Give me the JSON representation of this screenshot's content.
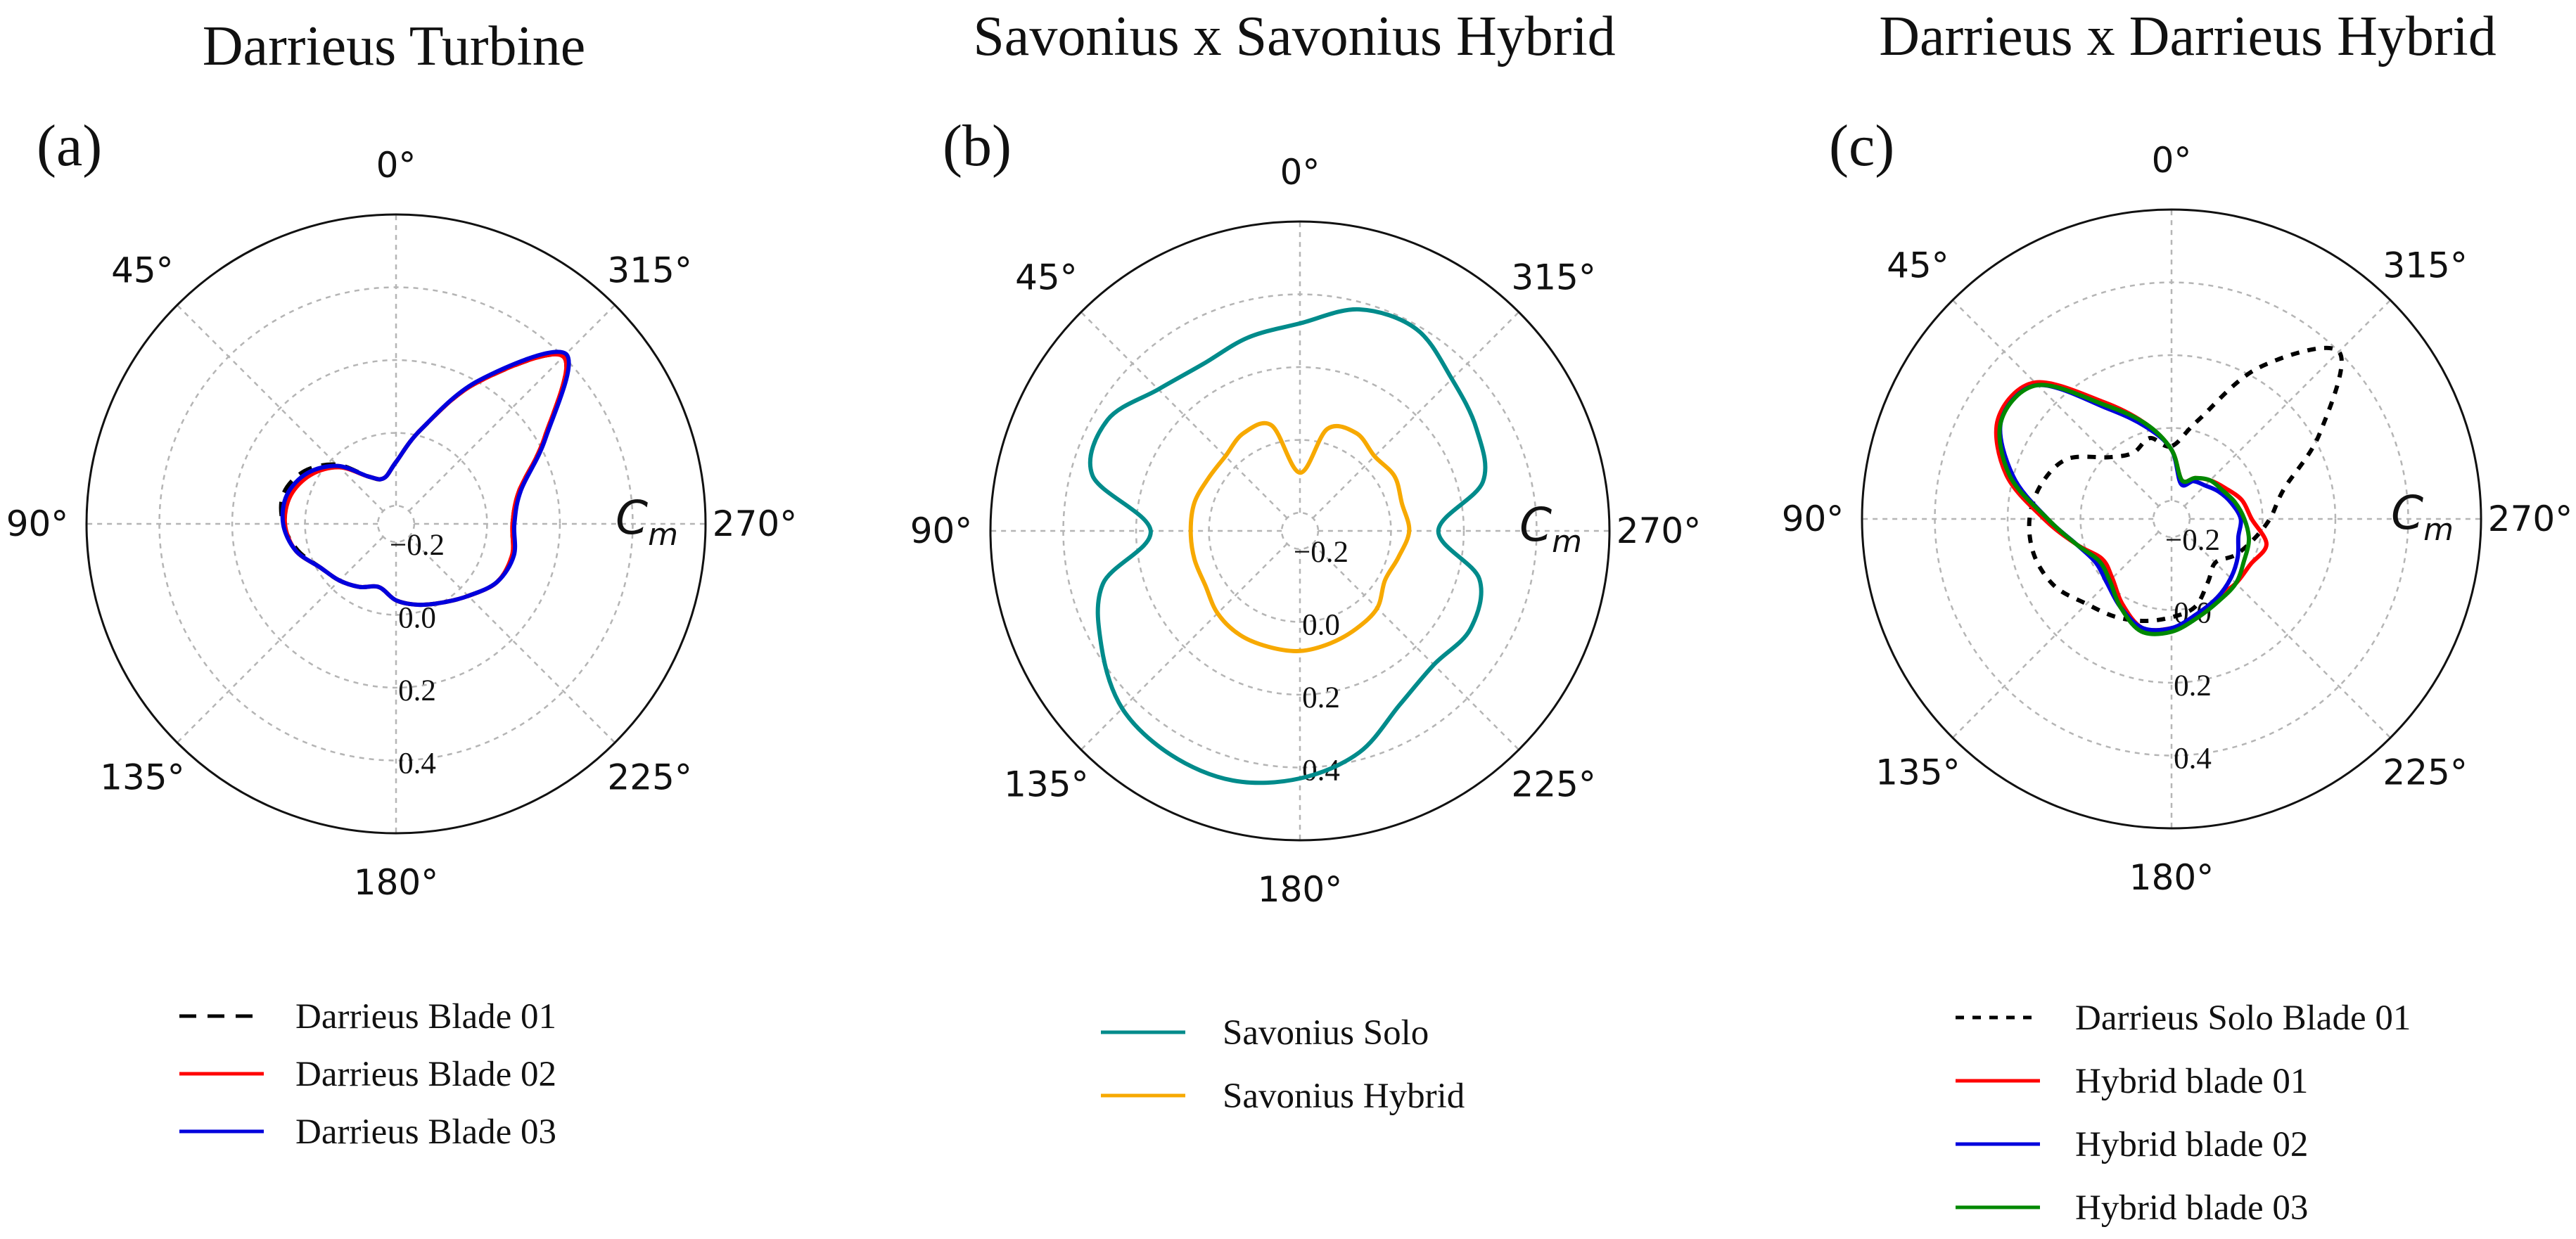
{
  "chart_data": [
    {
      "type": "polar-line",
      "panel_label": "(a)",
      "title": "Darrieus Turbine",
      "angle_labels": [
        "0°",
        "45°",
        "90°",
        "135°",
        "180°",
        "225°",
        "270°",
        "315°"
      ],
      "radial_tick_labels": [
        "−0.2",
        "0.0",
        "0.2",
        "0.4"
      ],
      "radial_ticks": [
        -0.2,
        0.0,
        0.2,
        0.4
      ],
      "rlim": [
        -0.25,
        0.6
      ],
      "radial_axis_label": "Cm",
      "theta_direction": "counterclockwise from top",
      "grid": true,
      "legend_position": "below",
      "theta_deg": [
        0,
        15,
        30,
        45,
        60,
        75,
        90,
        105,
        120,
        135,
        150,
        165,
        180,
        195,
        210,
        225,
        240,
        255,
        270,
        285,
        300,
        315,
        330,
        345
      ],
      "series": [
        {
          "name": "Darrieus Blade 01",
          "color": "#000000",
          "dash": "dashed",
          "values": [
            -0.08,
            -0.12,
            -0.1,
            -0.02,
            0.04,
            0.07,
            0.06,
            0.03,
            -0.01,
            -0.03,
            -0.05,
            -0.07,
            -0.04,
            -0.02,
            0.0,
            0.03,
            0.07,
            0.08,
            0.07,
            0.1,
            0.22,
            0.4,
            0.2,
            0.02
          ]
        },
        {
          "name": "Darrieus Blade 02",
          "color": "#ff0000",
          "dash": "solid",
          "values": [
            -0.08,
            -0.12,
            -0.1,
            -0.03,
            0.02,
            0.05,
            0.055,
            0.035,
            -0.01,
            -0.03,
            -0.05,
            -0.07,
            -0.04,
            -0.02,
            0.0,
            0.03,
            0.07,
            0.08,
            0.07,
            0.1,
            0.22,
            0.4,
            0.2,
            0.02
          ]
        },
        {
          "name": "Darrieus Blade 03",
          "color": "#0000dd",
          "dash": "solid",
          "values": [
            -0.08,
            -0.12,
            -0.1,
            -0.025,
            0.03,
            0.06,
            0.06,
            0.035,
            -0.01,
            -0.03,
            -0.05,
            -0.07,
            -0.04,
            -0.02,
            0.0,
            0.03,
            0.07,
            0.085,
            0.075,
            0.105,
            0.225,
            0.41,
            0.205,
            0.02
          ]
        }
      ]
    },
    {
      "type": "polar-line",
      "panel_label": "(b)",
      "title": "Savonius x Savonius Hybrid",
      "angle_labels": [
        "0°",
        "45°",
        "90°",
        "135°",
        "180°",
        "225°",
        "270°",
        "315°"
      ],
      "radial_tick_labels": [
        "−0.2",
        "0.0",
        "0.2",
        "0.4"
      ],
      "radial_ticks": [
        -0.2,
        0.0,
        0.2,
        0.4
      ],
      "rlim": [
        -0.25,
        0.6
      ],
      "radial_axis_label": "Cm",
      "theta_direction": "counterclockwise from top",
      "grid": true,
      "legend_position": "below",
      "theta_deg": [
        0,
        15,
        30,
        45,
        60,
        75,
        90,
        105,
        120,
        135,
        150,
        165,
        180,
        195,
        210,
        225,
        240,
        255,
        270,
        285,
        300,
        315,
        330,
        345
      ],
      "series": [
        {
          "name": "Savonius Solo",
          "color": "#008b8b",
          "dash": "solid",
          "values": [
            0.32,
            0.3,
            0.28,
            0.3,
            0.36,
            0.34,
            0.16,
            0.31,
            0.38,
            0.44,
            0.46,
            0.46,
            0.43,
            0.38,
            0.3,
            0.27,
            0.29,
            0.26,
            0.13,
            0.27,
            0.31,
            0.34,
            0.39,
            0.38
          ]
        },
        {
          "name": "Savonius Hybrid",
          "color": "#f7a900",
          "dash": "solid",
          "values": [
            -0.09,
            0.05,
            0.06,
            0.04,
            0.04,
            0.05,
            0.05,
            0.05,
            0.05,
            0.07,
            0.08,
            0.08,
            0.08,
            0.07,
            0.06,
            0.05,
            0.02,
            0.03,
            0.05,
            0.04,
            0.05,
            0.04,
            0.06,
            0.04
          ]
        }
      ]
    },
    {
      "type": "polar-line",
      "panel_label": "(c)",
      "title": "Darrieus x Darrieus Hybrid",
      "angle_labels": [
        "0°",
        "45°",
        "90°",
        "135°",
        "180°",
        "225°",
        "270°",
        "315°"
      ],
      "radial_tick_labels": [
        "−0.2",
        "0.0",
        "0.2",
        "0.4"
      ],
      "radial_ticks": [
        -0.2,
        0.0,
        0.2,
        0.4
      ],
      "rlim": [
        -0.25,
        0.6
      ],
      "radial_axis_label": "Cm",
      "theta_direction": "counterclockwise from top",
      "grid": true,
      "legend_position": "below",
      "theta_deg": [
        0,
        15,
        30,
        45,
        60,
        75,
        90,
        105,
        120,
        135,
        150,
        165,
        180,
        195,
        210,
        225,
        240,
        255,
        270,
        285,
        300,
        315,
        330,
        345
      ],
      "series": [
        {
          "name": "Darrieus Solo Blade 01",
          "color": "#000000",
          "dash": "dotted",
          "values": [
            -0.05,
            -0.02,
            -0.04,
            -0.01,
            0.08,
            0.12,
            0.14,
            0.14,
            0.12,
            0.08,
            0.06,
            0.04,
            0.02,
            0.0,
            -0.05,
            -0.08,
            -0.05,
            -0.02,
            0.02,
            0.07,
            0.22,
            0.4,
            0.23,
            0.03
          ]
        },
        {
          "name": "Hybrid blade 01",
          "color": "#ff0000",
          "dash": "solid",
          "values": [
            -0.06,
            0.02,
            0.12,
            0.28,
            0.3,
            0.22,
            0.1,
            0.02,
            -0.03,
            -0.02,
            0.02,
            0.06,
            0.05,
            0.03,
            0.0,
            0.0,
            0.0,
            0.02,
            -0.03,
            -0.05,
            -0.08,
            -0.1,
            -0.12,
            -0.14
          ]
        },
        {
          "name": "Hybrid blade 02",
          "color": "#0000dd",
          "dash": "solid",
          "values": [
            -0.06,
            0.01,
            0.1,
            0.27,
            0.29,
            0.2,
            0.09,
            0.02,
            -0.01,
            0.0,
            0.03,
            0.06,
            0.05,
            0.02,
            0.0,
            -0.02,
            -0.04,
            -0.06,
            -0.06,
            -0.08,
            -0.1,
            -0.12,
            -0.13,
            -0.15
          ]
        },
        {
          "name": "Hybrid blade 03",
          "color": "#008800",
          "dash": "solid",
          "values": [
            -0.06,
            0.02,
            0.11,
            0.27,
            0.29,
            0.21,
            0.09,
            0.02,
            -0.02,
            -0.01,
            0.03,
            0.07,
            0.06,
            0.03,
            0.01,
            0.0,
            -0.02,
            -0.03,
            -0.05,
            -0.07,
            -0.09,
            -0.1,
            -0.12,
            -0.14
          ]
        }
      ]
    }
  ]
}
